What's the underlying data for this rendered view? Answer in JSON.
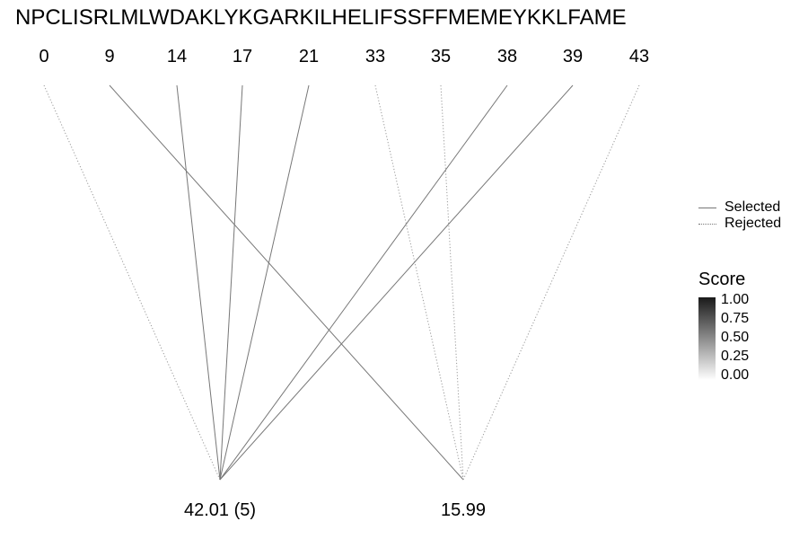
{
  "sequence": "NPCLISRLMLWDAKLYKGARKILHELIFSSFFMEMEYKKLFAME",
  "positions": [
    "0",
    "9",
    "14",
    "17",
    "21",
    "33",
    "35",
    "38",
    "39",
    "43"
  ],
  "nodes": [
    "42.01 (5)",
    "15.99"
  ],
  "edges": [
    {
      "from": 0,
      "to": 0,
      "status": "rejected"
    },
    {
      "from": 1,
      "to": 1,
      "status": "selected"
    },
    {
      "from": 2,
      "to": 0,
      "status": "selected"
    },
    {
      "from": 3,
      "to": 0,
      "status": "selected"
    },
    {
      "from": 4,
      "to": 0,
      "status": "selected"
    },
    {
      "from": 5,
      "to": 1,
      "status": "rejected"
    },
    {
      "from": 6,
      "to": 1,
      "status": "rejected"
    },
    {
      "from": 7,
      "to": 0,
      "status": "selected"
    },
    {
      "from": 8,
      "to": 0,
      "status": "selected"
    },
    {
      "from": 9,
      "to": 1,
      "status": "rejected"
    }
  ],
  "legend": {
    "selected": "Selected",
    "rejected": "Rejected"
  },
  "score_legend": {
    "title": "Score",
    "ticks": [
      "1.00",
      "0.75",
      "0.50",
      "0.25",
      "0.00"
    ]
  },
  "colors": {
    "line": "#777777",
    "dotted": "#999999"
  }
}
